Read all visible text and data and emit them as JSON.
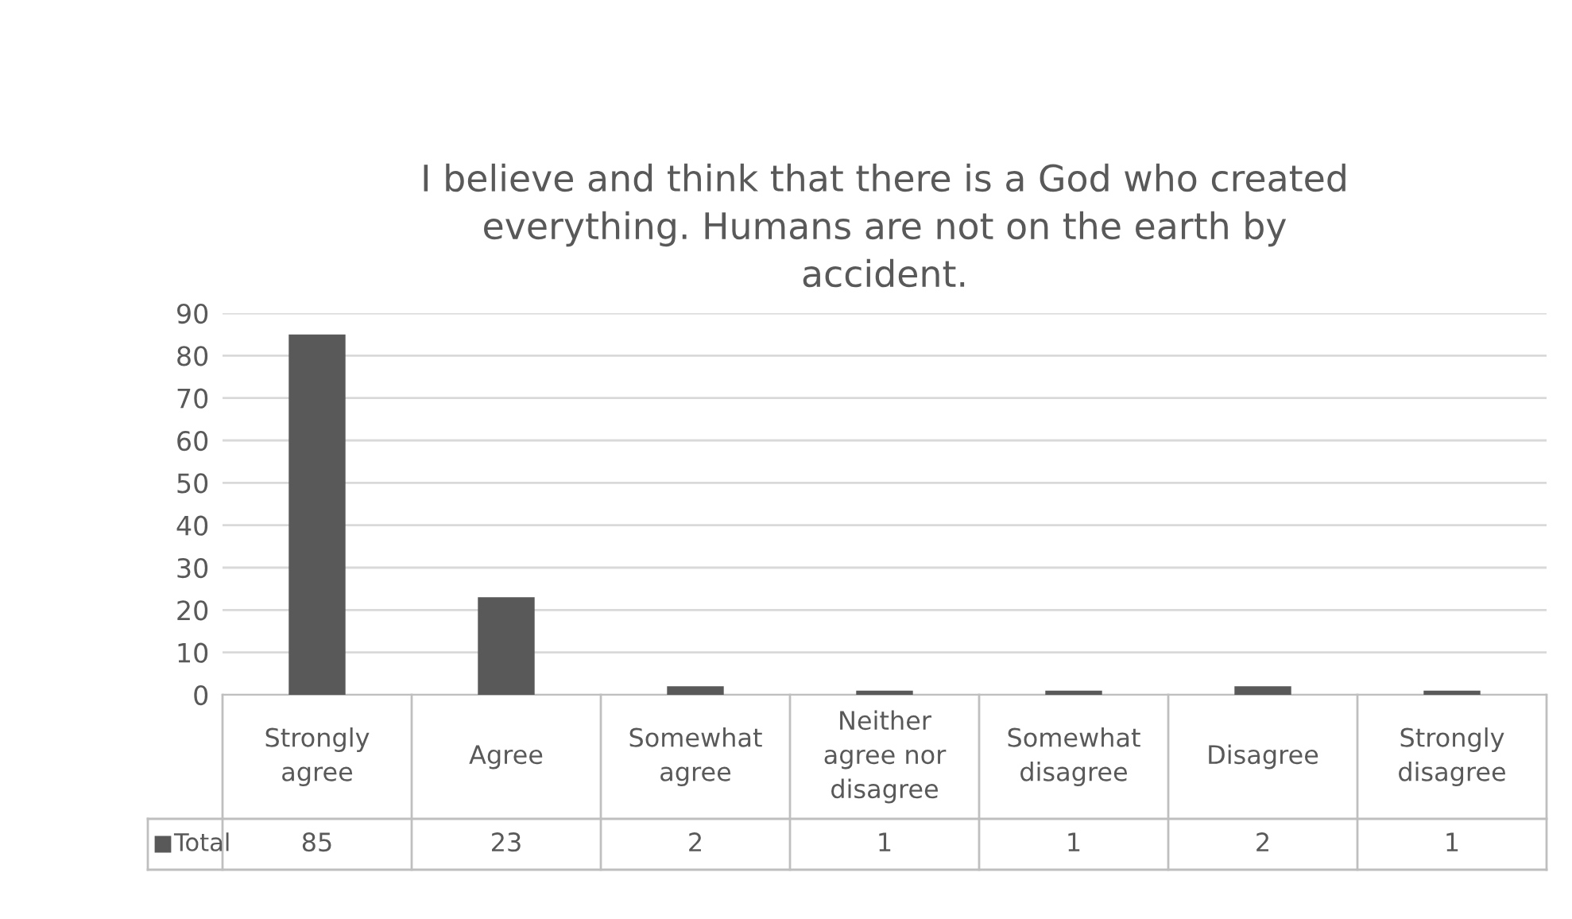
{
  "chart_data": {
    "type": "bar",
    "title": "I believe and think that there is a God who created\neverything. Humans are not on the earth by\naccident.",
    "categories": [
      "Strongly\nagree",
      "Agree",
      "Somewhat\nagree",
      "Neither\nagree nor\ndisagree",
      "Somewhat\ndisagree",
      "Disagree",
      "Strongly\ndisagree"
    ],
    "series": [
      {
        "name": "Total",
        "color": "#595959",
        "values": [
          85,
          23,
          2,
          1,
          1,
          2,
          1
        ]
      }
    ],
    "ylim": [
      0,
      90
    ],
    "yticks": [
      0,
      10,
      20,
      30,
      40,
      50,
      60,
      70,
      80,
      90
    ],
    "grid": "y",
    "legend": "bottom",
    "data_labels": true
  }
}
